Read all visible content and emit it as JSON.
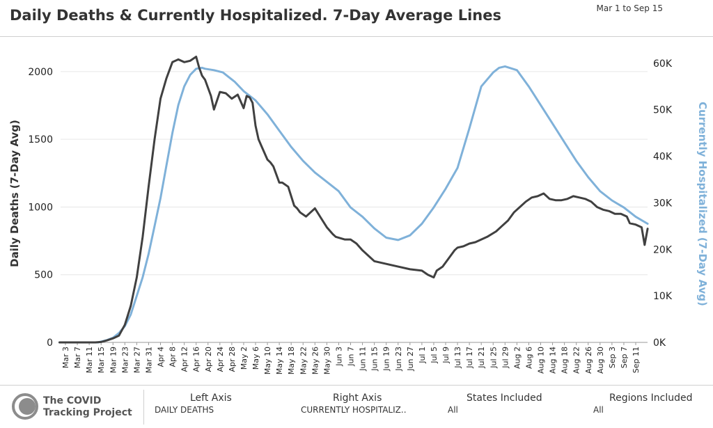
{
  "header": {
    "title": "Daily Deaths & Currently Hospitalized. 7-Day Average Lines",
    "date_range": "Mar 1 to Sep 15"
  },
  "chart_data": {
    "type": "line",
    "xlabel": "",
    "x_ticks": [
      "Mar 3",
      "Mar 7",
      "Mar 11",
      "Mar 15",
      "Mar 19",
      "Mar 23",
      "Mar 27",
      "Mar 31",
      "Apr 4",
      "Apr 8",
      "Apr 12",
      "Apr 16",
      "Apr 20",
      "Apr 24",
      "Apr 28",
      "May 2",
      "May 6",
      "May 10",
      "May 14",
      "May 18",
      "May 22",
      "May 26",
      "May 30",
      "Jun 3",
      "Jun 7",
      "Jun 11",
      "Jun 15",
      "Jun 19",
      "Jun 23",
      "Jun 27",
      "Jul 1",
      "Jul 5",
      "Jul 9",
      "Jul 13",
      "Jul 17",
      "Jul 21",
      "Jul 25",
      "Jul 29",
      "Aug 2",
      "Aug 6",
      "Aug 10",
      "Aug 14",
      "Aug 18",
      "Aug 22",
      "Aug 26",
      "Aug 30",
      "Sep 3",
      "Sep 7",
      "Sep 11"
    ],
    "left_axis": {
      "label": "Daily Deaths (7-Day Avg)",
      "ylim": [
        0,
        2200
      ],
      "ticks": [
        0,
        500,
        1000,
        1500,
        2000
      ],
      "tick_labels": [
        "0",
        "500",
        "1000",
        "1500",
        "2000"
      ]
    },
    "right_axis": {
      "label": "Currently Hospitalized (7-Day Avg)",
      "ylim": [
        0,
        64000
      ],
      "ticks": [
        0,
        10000,
        20000,
        30000,
        40000,
        50000,
        60000
      ],
      "tick_labels": [
        "0K",
        "10K",
        "20K",
        "30K",
        "40K",
        "50K",
        "60K"
      ]
    },
    "grid": true,
    "series": [
      {
        "name": "Daily Deaths",
        "axis": "left",
        "color": "#404040",
        "x": [
          "Mar 1",
          "Mar 7",
          "Mar 13",
          "Mar 15",
          "Mar 17",
          "Mar 19",
          "Mar 21",
          "Mar 23",
          "Mar 25",
          "Mar 27",
          "Mar 29",
          "Mar 31",
          "Apr 2",
          "Apr 4",
          "Apr 6",
          "Apr 8",
          "Apr 10",
          "Apr 12",
          "Apr 14",
          "Apr 16",
          "Apr 17",
          "Apr 18",
          "Apr 19",
          "Apr 21",
          "Apr 22",
          "Apr 24",
          "Apr 26",
          "Apr 27",
          "Apr 28",
          "Apr 30",
          "May 2",
          "May 3",
          "May 4",
          "May 5",
          "May 6",
          "May 7",
          "May 8",
          "May 10",
          "May 11",
          "May 12",
          "May 13",
          "May 14",
          "May 15",
          "May 17",
          "May 19",
          "May 20",
          "May 21",
          "May 23",
          "May 24",
          "May 26",
          "May 28",
          "May 30",
          "Jun 1",
          "Jun 2",
          "Jun 5",
          "Jun 7",
          "Jun 9",
          "Jun 11",
          "Jun 13",
          "Jun 15",
          "Jun 19",
          "Jun 23",
          "Jun 27",
          "Jul 1",
          "Jul 3",
          "Jul 5",
          "Jul 6",
          "Jul 8",
          "Jul 10",
          "Jul 12",
          "Jul 13",
          "Jul 15",
          "Jul 17",
          "Jul 19",
          "Jul 21",
          "Jul 23",
          "Jul 26",
          "Jul 28",
          "Jul 30",
          "Aug 1",
          "Aug 3",
          "Aug 5",
          "Aug 7",
          "Aug 9",
          "Aug 11",
          "Aug 13",
          "Aug 15",
          "Aug 17",
          "Aug 19",
          "Aug 21",
          "Aug 23",
          "Aug 25",
          "Aug 27",
          "Aug 29",
          "Aug 31",
          "Sep 2",
          "Sep 4",
          "Sep 6",
          "Sep 8",
          "Sep 9",
          "Sep 11",
          "Sep 13",
          "Sep 14",
          "Sep 15"
        ],
        "values": [
          0,
          0,
          0,
          3,
          15,
          30,
          50,
          130,
          270,
          480,
          780,
          1150,
          1500,
          1800,
          1950,
          2070,
          2090,
          2070,
          2080,
          2110,
          2030,
          1970,
          1940,
          1820,
          1720,
          1850,
          1840,
          1820,
          1800,
          1830,
          1730,
          1820,
          1810,
          1770,
          1600,
          1500,
          1450,
          1350,
          1330,
          1300,
          1240,
          1180,
          1180,
          1150,
          1010,
          990,
          960,
          930,
          950,
          990,
          920,
          850,
          800,
          780,
          760,
          760,
          730,
          680,
          640,
          600,
          580,
          560,
          540,
          530,
          500,
          480,
          530,
          560,
          620,
          680,
          700,
          710,
          730,
          740,
          760,
          780,
          820,
          860,
          900,
          960,
          1000,
          1040,
          1070,
          1080,
          1100,
          1060,
          1050,
          1050,
          1060,
          1080,
          1070,
          1060,
          1040,
          1000,
          980,
          970,
          950,
          950,
          930,
          880,
          870,
          850,
          720,
          840
        ]
      },
      {
        "name": "Currently Hospitalized",
        "axis": "right",
        "color": "#7fb1d9",
        "x": [
          "Mar 1",
          "Mar 14",
          "Mar 17",
          "Mar 19",
          "Mar 21",
          "Mar 23",
          "Mar 25",
          "Mar 27",
          "Mar 29",
          "Mar 31",
          "Apr 2",
          "Apr 4",
          "Apr 6",
          "Apr 8",
          "Apr 10",
          "Apr 12",
          "Apr 14",
          "Apr 16",
          "Apr 18",
          "Apr 19",
          "Apr 22",
          "Apr 25",
          "Apr 27",
          "Apr 28",
          "Apr 29",
          "May 2",
          "May 6",
          "May 10",
          "May 14",
          "May 18",
          "May 22",
          "May 26",
          "May 30",
          "Jun 3",
          "Jun 7",
          "Jun 11",
          "Jun 15",
          "Jun 19",
          "Jun 23",
          "Jun 27",
          "Jul 1",
          "Jul 5",
          "Jul 9",
          "Jul 13",
          "Jul 17",
          "Jul 21",
          "Jul 25",
          "Jul 27",
          "Jul 29",
          "Aug 2",
          "Aug 6",
          "Aug 10",
          "Aug 14",
          "Aug 18",
          "Aug 22",
          "Aug 26",
          "Aug 30",
          "Sep 3",
          "Sep 7",
          "Sep 11",
          "Sep 15"
        ],
        "values": [
          0,
          0,
          500,
          1000,
          2000,
          3500,
          6000,
          10000,
          14000,
          19000,
          25000,
          31000,
          38000,
          45000,
          51000,
          55000,
          57500,
          58800,
          59000,
          58800,
          58500,
          58000,
          57000,
          56500,
          56000,
          54000,
          52000,
          49000,
          45500,
          42000,
          39000,
          36500,
          34500,
          32500,
          29000,
          27000,
          24500,
          22500,
          22000,
          23000,
          25500,
          29000,
          33000,
          37500,
          46000,
          55000,
          58000,
          59000,
          59300,
          58500,
          55000,
          51000,
          47000,
          43000,
          39000,
          35500,
          32500,
          30500,
          29000,
          27000,
          25500
        ]
      }
    ]
  },
  "footer": {
    "logo_text_1": "The COVID",
    "logo_text_2": "Tracking Project",
    "groups": [
      {
        "label": "Left Axis",
        "value": "DAILY DEATHS"
      },
      {
        "label": "Right Axis",
        "value": "CURRENTLY HOSPITALIZ.."
      },
      {
        "label": "States Included",
        "value": "All"
      },
      {
        "label": "Regions Included",
        "value": "All"
      }
    ]
  }
}
